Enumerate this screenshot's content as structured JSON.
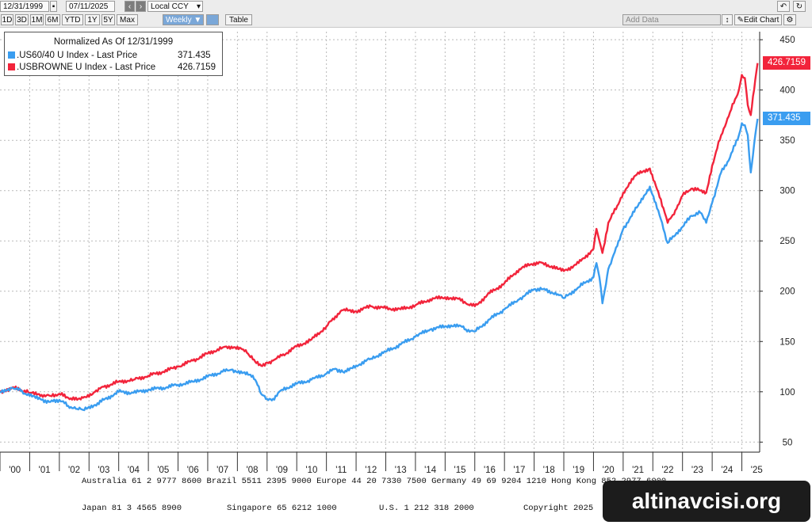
{
  "toolbar": {
    "start_date": "12/31/1999",
    "end_date": "07/11/2025",
    "currency": "Local CCY",
    "ranges": [
      "1D",
      "3D",
      "1M",
      "6M",
      "YTD",
      "1Y",
      "5Y",
      "Max"
    ],
    "frequency": "Weekly",
    "table_label": "Table",
    "add_data": "Add Data",
    "edit_chart": "Edit Chart"
  },
  "legend": {
    "title": "Normalized As Of 12/31/1999",
    "items": [
      {
        "label": ".US60/40 U Index - Last Price",
        "value": "371.435",
        "color": "#3a9df0"
      },
      {
        "label": ".USBROWNE U Index - Last Price",
        "value": "426.7159",
        "color": "#f2243b"
      }
    ]
  },
  "chart_data": {
    "type": "line",
    "title": "Normalized As Of 12/31/1999",
    "x_ticks": [
      "'00",
      "'01",
      "'02",
      "'03",
      "'04",
      "'05",
      "'06",
      "'07",
      "'08",
      "'09",
      "'10",
      "'11",
      "'12",
      "'13",
      "'14",
      "'15",
      "'16",
      "'17",
      "'18",
      "'19",
      "'20",
      "'21",
      "'22",
      "'23",
      "'24",
      "'25"
    ],
    "y_ticks": [
      50,
      100,
      150,
      200,
      250,
      300,
      350,
      400,
      450
    ],
    "ylim": [
      40,
      458
    ],
    "xlim": [
      2000.0,
      2025.6
    ],
    "grid": true,
    "series": [
      {
        "name": ".US60/40 U Index - Last Price",
        "color": "#3a9df0",
        "last": "371.435",
        "x": [
          2000.0,
          2000.4,
          2000.7,
          2001.0,
          2001.4,
          2001.7,
          2002.0,
          2002.3,
          2002.6,
          2002.8,
          2003.2,
          2003.5,
          2004.0,
          2004.5,
          2005.0,
          2005.5,
          2006.0,
          2006.5,
          2007.0,
          2007.5,
          2007.8,
          2008.2,
          2008.4,
          2008.6,
          2008.8,
          2009.0,
          2009.2,
          2009.5,
          2010.0,
          2010.5,
          2011.0,
          2011.3,
          2011.6,
          2012.0,
          2012.5,
          2013.0,
          2013.5,
          2014.0,
          2014.5,
          2015.0,
          2015.4,
          2015.7,
          2016.0,
          2016.5,
          2017.0,
          2017.5,
          2018.0,
          2018.3,
          2018.8,
          2019.0,
          2019.5,
          2020.0,
          2020.1,
          2020.2,
          2020.3,
          2020.5,
          2020.8,
          2021.0,
          2021.5,
          2021.9,
          2022.1,
          2022.4,
          2022.5,
          2022.8,
          2023.0,
          2023.3,
          2023.6,
          2023.8,
          2024.0,
          2024.3,
          2024.6,
          2024.9,
          2025.0,
          2025.1,
          2025.2,
          2025.3,
          2025.45,
          2025.53
        ],
        "values": [
          100,
          104,
          101,
          96,
          92,
          90,
          92,
          86,
          83,
          82,
          87,
          92,
          100,
          99,
          102,
          104,
          107,
          110,
          115,
          120,
          122,
          119,
          117,
          112,
          98,
          93,
          93,
          102,
          108,
          112,
          118,
          123,
          119,
          126,
          133,
          140,
          147,
          155,
          162,
          165,
          167,
          162,
          160,
          172,
          182,
          192,
          202,
          202,
          197,
          193,
          204,
          214,
          228,
          214,
          188,
          222,
          245,
          262,
          285,
          304,
          288,
          258,
          248,
          258,
          264,
          275,
          278,
          268,
          288,
          318,
          333,
          355,
          367,
          365,
          355,
          318,
          355,
          371.435
        ]
      },
      {
        "name": ".USBROWNE U Index - Last Price",
        "color": "#f2243b",
        "last": "426.7159",
        "x": [
          2000.0,
          2000.4,
          2000.7,
          2001.0,
          2001.4,
          2001.7,
          2002.0,
          2002.3,
          2002.6,
          2002.8,
          2003.2,
          2003.5,
          2004.0,
          2004.5,
          2005.0,
          2005.5,
          2006.0,
          2006.5,
          2007.0,
          2007.5,
          2007.8,
          2008.2,
          2008.4,
          2008.6,
          2008.8,
          2009.0,
          2009.2,
          2009.5,
          2010.0,
          2010.5,
          2011.0,
          2011.3,
          2011.6,
          2012.0,
          2012.5,
          2013.0,
          2013.5,
          2014.0,
          2014.5,
          2015.0,
          2015.4,
          2015.7,
          2016.0,
          2016.5,
          2017.0,
          2017.5,
          2018.0,
          2018.3,
          2018.8,
          2019.0,
          2019.5,
          2020.0,
          2020.1,
          2020.2,
          2020.3,
          2020.5,
          2020.8,
          2021.0,
          2021.5,
          2021.9,
          2022.1,
          2022.4,
          2022.5,
          2022.8,
          2023.0,
          2023.3,
          2023.6,
          2023.8,
          2024.0,
          2024.3,
          2024.6,
          2024.9,
          2025.0,
          2025.1,
          2025.2,
          2025.3,
          2025.45,
          2025.53
        ],
        "values": [
          100,
          104,
          102,
          99,
          97,
          96,
          98,
          94,
          92,
          94,
          100,
          105,
          110,
          112,
          116,
          120,
          125,
          131,
          138,
          144,
          145,
          142,
          136,
          130,
          126,
          129,
          131,
          136,
          145,
          152,
          165,
          175,
          182,
          180,
          185,
          183,
          182,
          186,
          192,
          194,
          193,
          188,
          185,
          198,
          208,
          222,
          228,
          228,
          222,
          220,
          228,
          242,
          262,
          250,
          238,
          268,
          285,
          298,
          318,
          322,
          305,
          278,
          268,
          282,
          295,
          302,
          300,
          298,
          325,
          355,
          378,
          400,
          415,
          412,
          385,
          375,
          410,
          426.7159
        ]
      }
    ]
  },
  "footer": {
    "line1": "Australia 61 2 9777 8600 Brazil 5511 2395 9000 Europe 44 20 7330 7500 Germany 49 69 9204 1210 Hong Kong 852 2977 6000",
    "line2": [
      "Japan 81 3 4565 8900",
      "Singapore 65 6212 1000",
      "U.S. 1 212 318 2000",
      "Copyright 2025"
    ]
  },
  "watermark": "altinavcisi.org"
}
